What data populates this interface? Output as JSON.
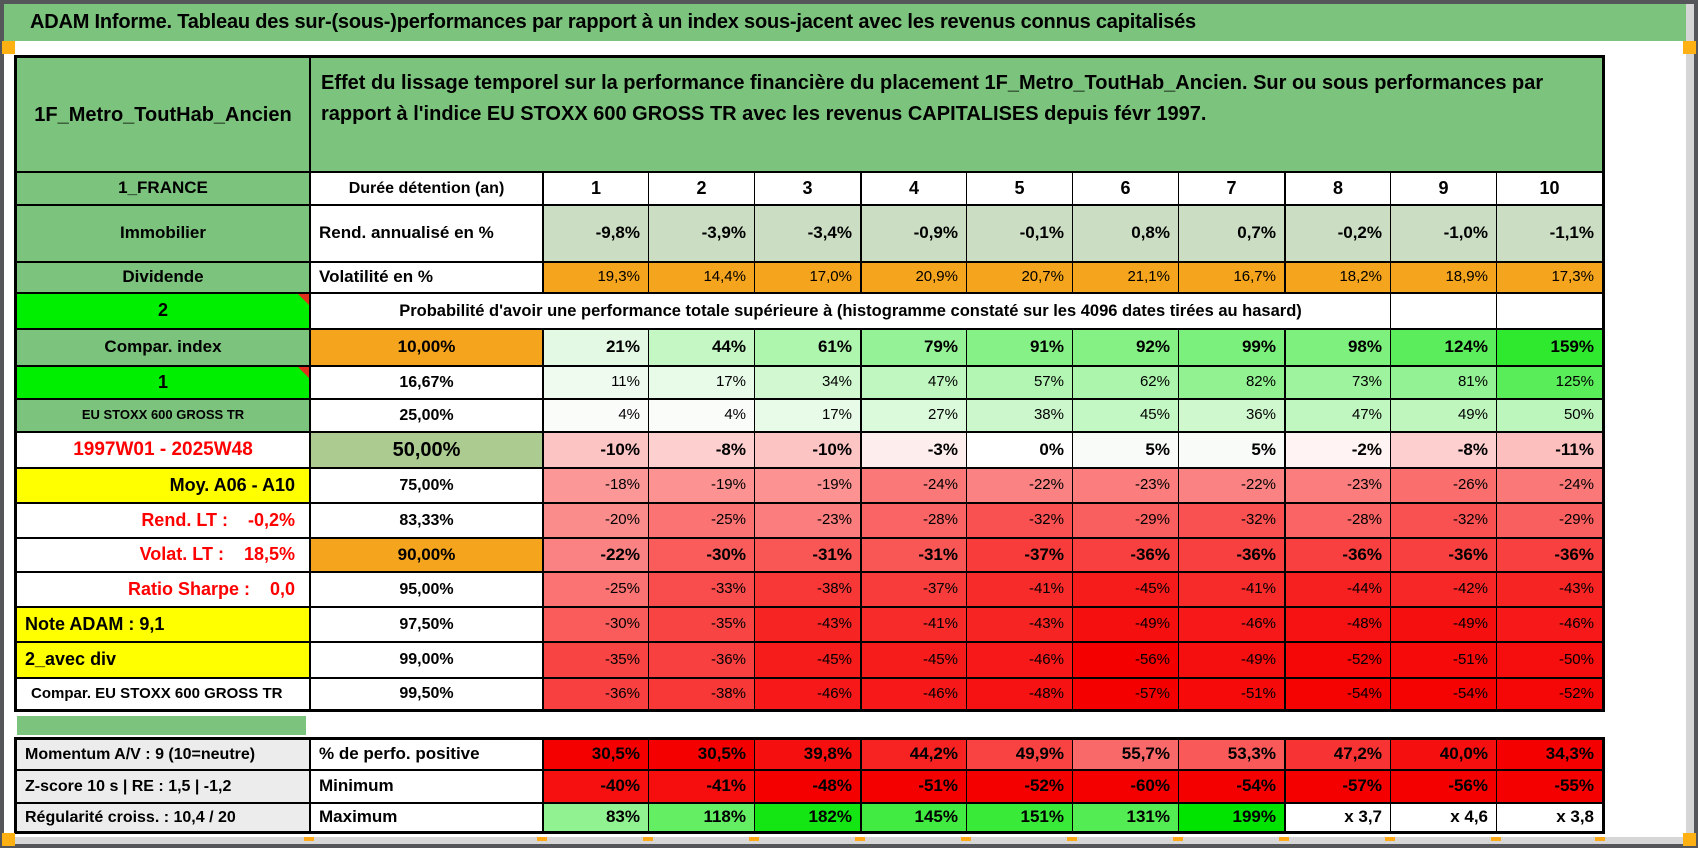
{
  "title": "ADAM Informe. Tableau des sur-(sous-)performances par rapport à un index sous-jacent avec les revenus connus capitalisés",
  "header": {
    "asset": "1F_Metro_ToutHab_Ancien",
    "description": "Effet du lissage temporel sur la performance financière du placement 1F_Metro_ToutHab_Ancien. Sur ou sous performances par rapport à l'indice EU STOXX 600 GROSS TR avec les revenus CAPITALISES depuis févr 1997."
  },
  "columns": [
    "1",
    "2",
    "3",
    "4",
    "5",
    "6",
    "7",
    "8",
    "9",
    "10"
  ],
  "table": {
    "proba_header": "Probabilité d'avoir une performance totale supérieure à (histogramme constaté sur les 4096 dates tirées au hasard)",
    "rows": [
      {
        "kind": "colhead",
        "a": "1_FRANCE",
        "b": "Durée détention (an)"
      },
      {
        "a": "Immobilier",
        "b": "Rend. annualisé en %",
        "b_style": "left",
        "mode": "sage",
        "bold": true,
        "values": [
          "-9,8%",
          "-3,9%",
          "-3,4%",
          "-0,9%",
          "-0,1%",
          "0,8%",
          "0,7%",
          "-0,2%",
          "-1,0%",
          "-1,1%"
        ]
      },
      {
        "a": "Dividende",
        "b": "Volatilité en %",
        "b_style": "left",
        "mode": "orange",
        "values": [
          "19,3%",
          "14,4%",
          "17,0%",
          "20,9%",
          "20,7%",
          "21,1%",
          "16,7%",
          "18,2%",
          "18,9%",
          "17,3%"
        ]
      },
      {
        "kind": "proba",
        "a": "2",
        "a_style": "bright",
        "comment": true
      },
      {
        "a": "Compar. index",
        "b": "10,00%",
        "b_style": "orange",
        "bold": true,
        "mode": "scale",
        "values": [
          "21%",
          "44%",
          "61%",
          "79%",
          "91%",
          "92%",
          "99%",
          "98%",
          "124%",
          "159%"
        ]
      },
      {
        "a": "1",
        "a_style": "bright",
        "comment": true,
        "b": "16,67%",
        "mode": "scale",
        "values": [
          "11%",
          "17%",
          "34%",
          "47%",
          "57%",
          "62%",
          "82%",
          "73%",
          "81%",
          "125%"
        ]
      },
      {
        "a": "EU STOXX 600 GROSS TR",
        "a_style": "small",
        "b": "25,00%",
        "mode": "scale",
        "values": [
          "4%",
          "4%",
          "17%",
          "27%",
          "38%",
          "45%",
          "36%",
          "47%",
          "49%",
          "50%"
        ]
      },
      {
        "a": "1997W01 - 2025W48",
        "a_style": "daterange",
        "b": "50,00%",
        "b_style": "sagebig",
        "bold": true,
        "mode": "scale",
        "values": [
          "-10%",
          "-8%",
          "-10%",
          "-3%",
          "0%",
          "5%",
          "5%",
          "-2%",
          "-8%",
          "-11%"
        ]
      },
      {
        "a": "Moy. A06 - A10",
        "a_style": "yellowR",
        "b": "75,00%",
        "mode": "scale",
        "values": [
          "-18%",
          "-19%",
          "-19%",
          "-24%",
          "-22%",
          "-23%",
          "-22%",
          "-23%",
          "-26%",
          "-24%"
        ]
      },
      {
        "a": "Rend. LT :    -0,2%",
        "a_style": "redR",
        "b": "83,33%",
        "mode": "scale",
        "values": [
          "-20%",
          "-25%",
          "-23%",
          "-28%",
          "-32%",
          "-29%",
          "-32%",
          "-28%",
          "-32%",
          "-29%"
        ]
      },
      {
        "a": "Volat. LT :    18,5%",
        "a_style": "redR",
        "b": "90,00%",
        "b_style": "orange",
        "bold": true,
        "mode": "scale",
        "values": [
          "-22%",
          "-30%",
          "-31%",
          "-31%",
          "-37%",
          "-36%",
          "-36%",
          "-36%",
          "-36%",
          "-36%"
        ]
      },
      {
        "a": "Ratio Sharpe :    0,0",
        "a_style": "redR",
        "b": "95,00%",
        "mode": "scale",
        "values": [
          "-25%",
          "-33%",
          "-38%",
          "-37%",
          "-41%",
          "-45%",
          "-41%",
          "-44%",
          "-42%",
          "-43%"
        ]
      },
      {
        "a": "Note ADAM : 9,1",
        "a_style": "yellowL",
        "b": "97,50%",
        "mode": "scale",
        "values": [
          "-30%",
          "-35%",
          "-43%",
          "-41%",
          "-43%",
          "-49%",
          "-46%",
          "-48%",
          "-49%",
          "-46%"
        ]
      },
      {
        "a": "2_avec div",
        "a_style": "yellowL",
        "b": "99,00%",
        "mode": "scale",
        "values": [
          "-35%",
          "-36%",
          "-45%",
          "-45%",
          "-46%",
          "-56%",
          "-49%",
          "-52%",
          "-51%",
          "-50%"
        ]
      },
      {
        "a": "Compar. EU STOXX 600 GROSS TR",
        "a_style": "whiteL",
        "b": "99,50%",
        "mode": "scale",
        "values": [
          "-36%",
          "-38%",
          "-46%",
          "-46%",
          "-48%",
          "-57%",
          "-51%",
          "-54%",
          "-54%",
          "-52%"
        ]
      }
    ]
  },
  "bottom_table": {
    "rows": [
      {
        "a": "Momentum A/V : 9 (10=neutre)",
        "a_style": "gray",
        "b": "% de perfo. positive",
        "b_style": "left",
        "bold": true,
        "mode": "perfo",
        "values": [
          "30,5%",
          "30,5%",
          "39,8%",
          "44,2%",
          "49,9%",
          "55,7%",
          "53,3%",
          "47,2%",
          "40,0%",
          "34,3%"
        ]
      },
      {
        "a": "Z-score 10 s | RE : 1,5 | -1,2",
        "a_style": "gray",
        "b": "Minimum",
        "b_style": "left",
        "bold": true,
        "mode": "min",
        "values": [
          "-40%",
          "-41%",
          "-48%",
          "-51%",
          "-52%",
          "-60%",
          "-54%",
          "-57%",
          "-56%",
          "-55%"
        ]
      },
      {
        "a": "Régularité croiss. : 10,4 / 20",
        "a_style": "gray",
        "b": "Maximum",
        "b_style": "left",
        "bold": true,
        "mode": "max",
        "values": [
          "83%",
          "118%",
          "182%",
          "145%",
          "151%",
          "131%",
          "199%",
          "x 3,7",
          "x 4,6",
          "x 3,8"
        ]
      }
    ]
  },
  "colors": {
    "header_green": "#7cc47d",
    "bright_green": "#00ee00",
    "yellow": "#ffff00",
    "orange": "#f5a41d",
    "sage_row": "#cbdec3",
    "sage_label": "#accb90",
    "gray_label": "#ececec",
    "red_text": "#ff0000",
    "full_red": "#f50000",
    "full_green": "#00e400",
    "handle_orange": "#ffb012"
  }
}
